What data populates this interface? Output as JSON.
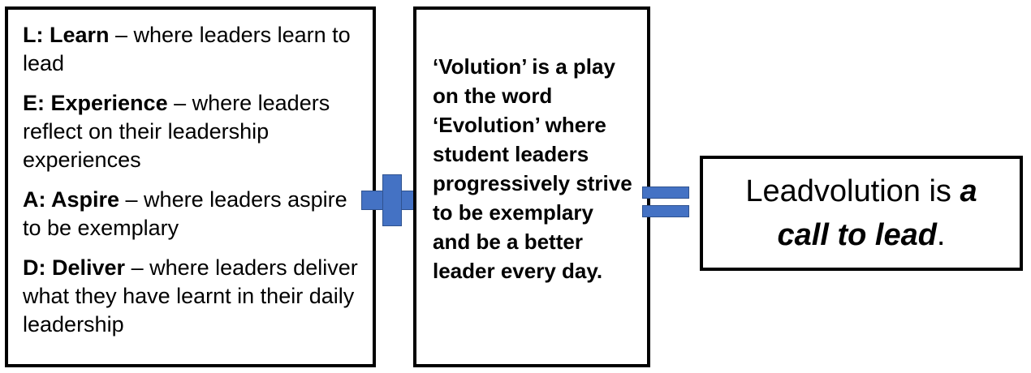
{
  "lead_box": {
    "items": [
      {
        "label": "L: Learn",
        "description": " – where leaders learn to lead"
      },
      {
        "label": "E: Experience",
        "description": " – where leaders reflect on their leadership experiences"
      },
      {
        "label": "A: Aspire",
        "description": " – where leaders aspire to be exemplary"
      },
      {
        "label": "D: Deliver",
        "description": " – where leaders deliver what they have learnt in their daily leadership"
      }
    ]
  },
  "volution_box": {
    "text": "‘Volution’ is a play on the word ‘Evolution’ where student leaders progressively strive to be exemplary and be a better leader every day."
  },
  "result_box": {
    "prefix": "Leadvolution is ",
    "emphasis": "a call to lead",
    "suffix": "."
  },
  "symbols": {
    "operator_color": "#4472c4",
    "plus": "plus-symbol",
    "equals": "equals-symbol"
  }
}
